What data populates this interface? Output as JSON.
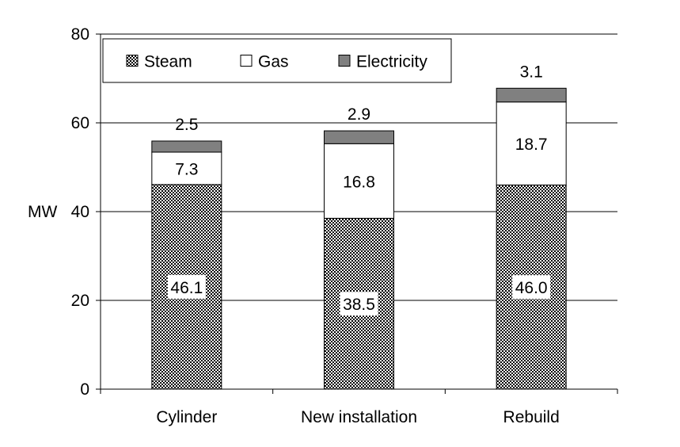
{
  "chart_data": {
    "type": "bar",
    "stacked": true,
    "categories": [
      "Cylinder",
      "New installation",
      "Rebuild"
    ],
    "series": [
      {
        "name": "Steam",
        "values": [
          46.1,
          38.5,
          46.0
        ],
        "fill": "checker",
        "color": "#000000"
      },
      {
        "name": "Gas",
        "values": [
          7.3,
          16.8,
          18.7
        ],
        "fill": "solid",
        "color": "#ffffff"
      },
      {
        "name": "Electricity",
        "values": [
          2.5,
          2.9,
          3.1
        ],
        "fill": "solid",
        "color": "#808080"
      }
    ],
    "data_labels": [
      [
        "46.1",
        "38.5",
        "46.0"
      ],
      [
        "7.3",
        "16.8",
        "18.7"
      ],
      [
        "2.5",
        "2.9",
        "3.1"
      ]
    ],
    "title": "",
    "xlabel": "",
    "ylabel": "MW",
    "ylim": [
      0,
      80
    ],
    "yticks": [
      "0",
      "20",
      "40",
      "60",
      "80"
    ],
    "grid": true,
    "legend_position": "top-left"
  }
}
